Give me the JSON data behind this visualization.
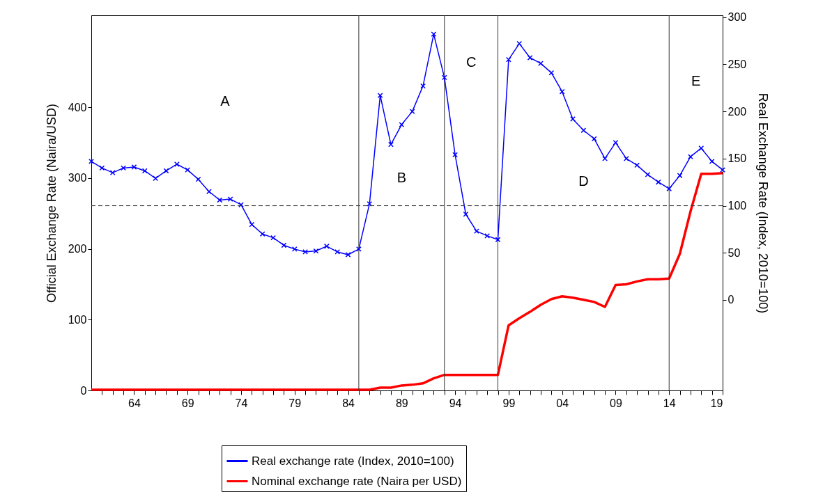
{
  "chart_data": {
    "type": "line",
    "xlabel": null,
    "ylabel": "Official Exchange Rate (Naira/USD)",
    "y2label": "Real Exchange Rate (Index, 2010=100)",
    "x": [
      1960,
      1961,
      1962,
      1963,
      1964,
      1965,
      1966,
      1967,
      1968,
      1969,
      1970,
      1971,
      1972,
      1973,
      1974,
      1975,
      1976,
      1977,
      1978,
      1979,
      1980,
      1981,
      1982,
      1983,
      1984,
      1985,
      1986,
      1987,
      1988,
      1989,
      1990,
      1991,
      1992,
      1993,
      1994,
      1995,
      1996,
      1997,
      1998,
      1999,
      2000,
      2001,
      2002,
      2003,
      2004,
      2005,
      2006,
      2007,
      2008,
      2009,
      2010,
      2011,
      2012,
      2013,
      2014,
      2015,
      2016,
      2017,
      2018,
      2019
    ],
    "series": [
      {
        "name": "Real exchange rate (Index, 2010=100)",
        "color": "#0000ff",
        "axis": "y2",
        "marker": "cross",
        "values": [
          147,
          140,
          135,
          140,
          141,
          137,
          129,
          137,
          144,
          138,
          128,
          115,
          106,
          107,
          101,
          80,
          70,
          66,
          58,
          54,
          51,
          52,
          57,
          51,
          48,
          54,
          102,
          217,
          165,
          186,
          200,
          227,
          282,
          236,
          154,
          91,
          73,
          68,
          64,
          255,
          272,
          257,
          251,
          241,
          221,
          192,
          180,
          171,
          150,
          167,
          150,
          143,
          133,
          125,
          118,
          132,
          152,
          161,
          147,
          138
        ]
      },
      {
        "name": "Nominal exchange rate (Naira per USD)",
        "color": "#ff0000",
        "marker": "none",
        "values": [
          1,
          1,
          1,
          1,
          1,
          1,
          1,
          1,
          1,
          1,
          1,
          1,
          1,
          1,
          1,
          1,
          1,
          1,
          1,
          1,
          1,
          1,
          1,
          1,
          1,
          1,
          1,
          4,
          4,
          7,
          8,
          10,
          17,
          22,
          22,
          22,
          22,
          22,
          22,
          92,
          102,
          111,
          121,
          129,
          133,
          131,
          128,
          125,
          118,
          149,
          150,
          154,
          157,
          157,
          158,
          193,
          253,
          306,
          306,
          307
        ]
      }
    ],
    "xlim": [
      1960,
      2019
    ],
    "xticks": [
      {
        "value": 1961,
        "label": null
      },
      {
        "value": 1962,
        "label": null
      },
      {
        "value": 1963,
        "label": null
      },
      {
        "value": 1964,
        "label": "64"
      },
      {
        "value": 1965,
        "label": null
      },
      {
        "value": 1966,
        "label": null
      },
      {
        "value": 1967,
        "label": null
      },
      {
        "value": 1968,
        "label": null
      },
      {
        "value": 1969,
        "label": "69"
      },
      {
        "value": 1970,
        "label": null
      },
      {
        "value": 1971,
        "label": null
      },
      {
        "value": 1972,
        "label": null
      },
      {
        "value": 1973,
        "label": null
      },
      {
        "value": 1974,
        "label": "74"
      },
      {
        "value": 1975,
        "label": null
      },
      {
        "value": 1976,
        "label": null
      },
      {
        "value": 1977,
        "label": null
      },
      {
        "value": 1978,
        "label": null
      },
      {
        "value": 1979,
        "label": "79"
      },
      {
        "value": 1980,
        "label": null
      },
      {
        "value": 1981,
        "label": null
      },
      {
        "value": 1982,
        "label": null
      },
      {
        "value": 1983,
        "label": null
      },
      {
        "value": 1984,
        "label": "84"
      },
      {
        "value": 1985,
        "label": null
      },
      {
        "value": 1986,
        "label": null
      },
      {
        "value": 1987,
        "label": null
      },
      {
        "value": 1988,
        "label": null
      },
      {
        "value": 1989,
        "label": "89"
      },
      {
        "value": 1990,
        "label": null
      },
      {
        "value": 1991,
        "label": null
      },
      {
        "value": 1992,
        "label": null
      },
      {
        "value": 1993,
        "label": null
      },
      {
        "value": 1994,
        "label": "94"
      },
      {
        "value": 1995,
        "label": null
      },
      {
        "value": 1996,
        "label": null
      },
      {
        "value": 1997,
        "label": null
      },
      {
        "value": 1998,
        "label": null
      },
      {
        "value": 1999,
        "label": "99"
      },
      {
        "value": 2000,
        "label": null
      },
      {
        "value": 2001,
        "label": null
      },
      {
        "value": 2002,
        "label": null
      },
      {
        "value": 2003,
        "label": null
      },
      {
        "value": 2004,
        "label": "04"
      },
      {
        "value": 2005,
        "label": null
      },
      {
        "value": 2006,
        "label": null
      },
      {
        "value": 2007,
        "label": null
      },
      {
        "value": 2008,
        "label": null
      },
      {
        "value": 2009,
        "label": "09"
      },
      {
        "value": 2010,
        "label": null
      },
      {
        "value": 2011,
        "label": null
      },
      {
        "value": 2012,
        "label": null
      },
      {
        "value": 2013,
        "label": null
      },
      {
        "value": 2014,
        "label": "14"
      },
      {
        "value": 2015,
        "label": null
      },
      {
        "value": 2016,
        "label": null
      },
      {
        "value": 2017,
        "label": null
      },
      {
        "value": 2018,
        "label": null
      },
      {
        "value": 2019,
        "label": "19"
      }
    ],
    "ylim": [
      0,
      530
    ],
    "yticks": [
      0,
      100,
      200,
      300,
      400
    ],
    "y2lim": [
      -96,
      302
    ],
    "y2ticks": [
      0,
      50,
      100,
      150,
      200,
      250,
      300
    ],
    "ref_lines": [
      {
        "axis": "x",
        "value": 1985,
        "color": "#333333"
      },
      {
        "axis": "x",
        "value": 1993,
        "color": "#333333"
      },
      {
        "axis": "x",
        "value": 1998,
        "color": "#333333"
      },
      {
        "axis": "x",
        "value": 2014,
        "color": "#333333"
      },
      {
        "axis": "y2",
        "value": 100,
        "color": "#333333",
        "line_style": "dashed"
      }
    ],
    "annotations": [
      "A",
      "B",
      "C",
      "D",
      "E"
    ],
    "grid": false,
    "legend": "bottom"
  }
}
